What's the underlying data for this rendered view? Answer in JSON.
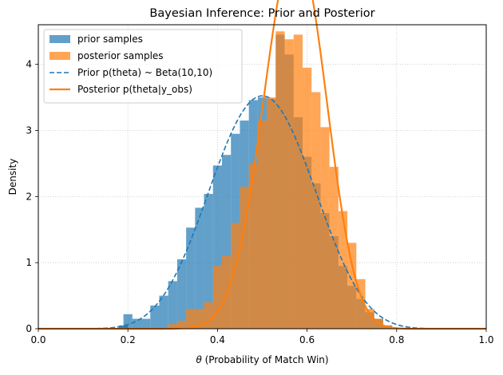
{
  "chart_data": {
    "type": "histogram",
    "title": "Bayesian Inference: Prior and Posterior",
    "xlabel_symbol": "θ",
    "xlabel_text": " (Probability of Match Win)",
    "ylabel": "Density",
    "xlim": [
      0.0,
      1.0
    ],
    "ylim": [
      0,
      4.6
    ],
    "xticks": [
      "0.0",
      "0.2",
      "0.4",
      "0.6",
      "0.8",
      "1.0"
    ],
    "yticks": [
      "0",
      "1",
      "2",
      "3",
      "4"
    ],
    "grid": true,
    "legend_position": "top-left",
    "colors": {
      "prior": "#1f77b4",
      "posterior": "#ff7f0e"
    },
    "series": [
      {
        "name": "prior samples",
        "kind": "histogram",
        "bin_width": 0.02,
        "bins": [
          {
            "x0": 0.18,
            "h": 0.04
          },
          {
            "x0": 0.18,
            "h": 0.05
          },
          {
            "x0": 0.19,
            "h": 0.22
          },
          {
            "x0": 0.21,
            "h": 0.15
          },
          {
            "x0": 0.23,
            "h": 0.15
          },
          {
            "x0": 0.25,
            "h": 0.35
          },
          {
            "x0": 0.27,
            "h": 0.5
          },
          {
            "x0": 0.29,
            "h": 0.72
          },
          {
            "x0": 0.31,
            "h": 1.05
          },
          {
            "x0": 0.33,
            "h": 1.53
          },
          {
            "x0": 0.35,
            "h": 1.83
          },
          {
            "x0": 0.37,
            "h": 2.04
          },
          {
            "x0": 0.39,
            "h": 2.47
          },
          {
            "x0": 0.41,
            "h": 2.63
          },
          {
            "x0": 0.43,
            "h": 2.95
          },
          {
            "x0": 0.45,
            "h": 3.15
          },
          {
            "x0": 0.47,
            "h": 3.46
          },
          {
            "x0": 0.49,
            "h": 3.5
          },
          {
            "x0": 0.51,
            "h": 3.48
          },
          {
            "x0": 0.53,
            "h": 4.45
          },
          {
            "x0": 0.55,
            "h": 4.15
          },
          {
            "x0": 0.57,
            "h": 3.2
          },
          {
            "x0": 0.59,
            "h": 2.6
          },
          {
            "x0": 0.61,
            "h": 2.2
          },
          {
            "x0": 0.63,
            "h": 1.75
          },
          {
            "x0": 0.65,
            "h": 1.4
          },
          {
            "x0": 0.67,
            "h": 0.95
          },
          {
            "x0": 0.69,
            "h": 0.65
          },
          {
            "x0": 0.71,
            "h": 0.45
          },
          {
            "x0": 0.73,
            "h": 0.25
          },
          {
            "x0": 0.75,
            "h": 0.15
          },
          {
            "x0": 0.77,
            "h": 0.05
          }
        ]
      },
      {
        "name": "posterior samples",
        "kind": "histogram",
        "bin_width": 0.02,
        "bins": [
          {
            "x0": 0.29,
            "h": 0.07
          },
          {
            "x0": 0.31,
            "h": 0.12
          },
          {
            "x0": 0.33,
            "h": 0.3
          },
          {
            "x0": 0.35,
            "h": 0.3
          },
          {
            "x0": 0.37,
            "h": 0.4
          },
          {
            "x0": 0.39,
            "h": 0.95
          },
          {
            "x0": 0.41,
            "h": 1.1
          },
          {
            "x0": 0.43,
            "h": 1.6
          },
          {
            "x0": 0.45,
            "h": 2.15
          },
          {
            "x0": 0.47,
            "h": 2.5
          },
          {
            "x0": 0.49,
            "h": 3.15
          },
          {
            "x0": 0.51,
            "h": 3.5
          },
          {
            "x0": 0.53,
            "h": 4.5
          },
          {
            "x0": 0.55,
            "h": 4.38
          },
          {
            "x0": 0.57,
            "h": 4.45
          },
          {
            "x0": 0.59,
            "h": 3.95
          },
          {
            "x0": 0.61,
            "h": 3.58
          },
          {
            "x0": 0.63,
            "h": 3.05
          },
          {
            "x0": 0.65,
            "h": 2.45
          },
          {
            "x0": 0.67,
            "h": 1.78
          },
          {
            "x0": 0.69,
            "h": 1.3
          },
          {
            "x0": 0.71,
            "h": 0.75
          },
          {
            "x0": 0.73,
            "h": 0.3
          },
          {
            "x0": 0.75,
            "h": 0.15
          },
          {
            "x0": 0.77,
            "h": 0.05
          }
        ]
      },
      {
        "name": "Prior p(theta) ~ Beta(10,10)",
        "kind": "line",
        "style": "dashed",
        "distribution": {
          "family": "beta",
          "a": 10,
          "b": 10
        }
      },
      {
        "name": "Posterior p(theta|y_obs)",
        "kind": "line",
        "style": "solid",
        "distribution": {
          "family": "beta",
          "a": 30,
          "b": 22.5
        }
      }
    ]
  }
}
